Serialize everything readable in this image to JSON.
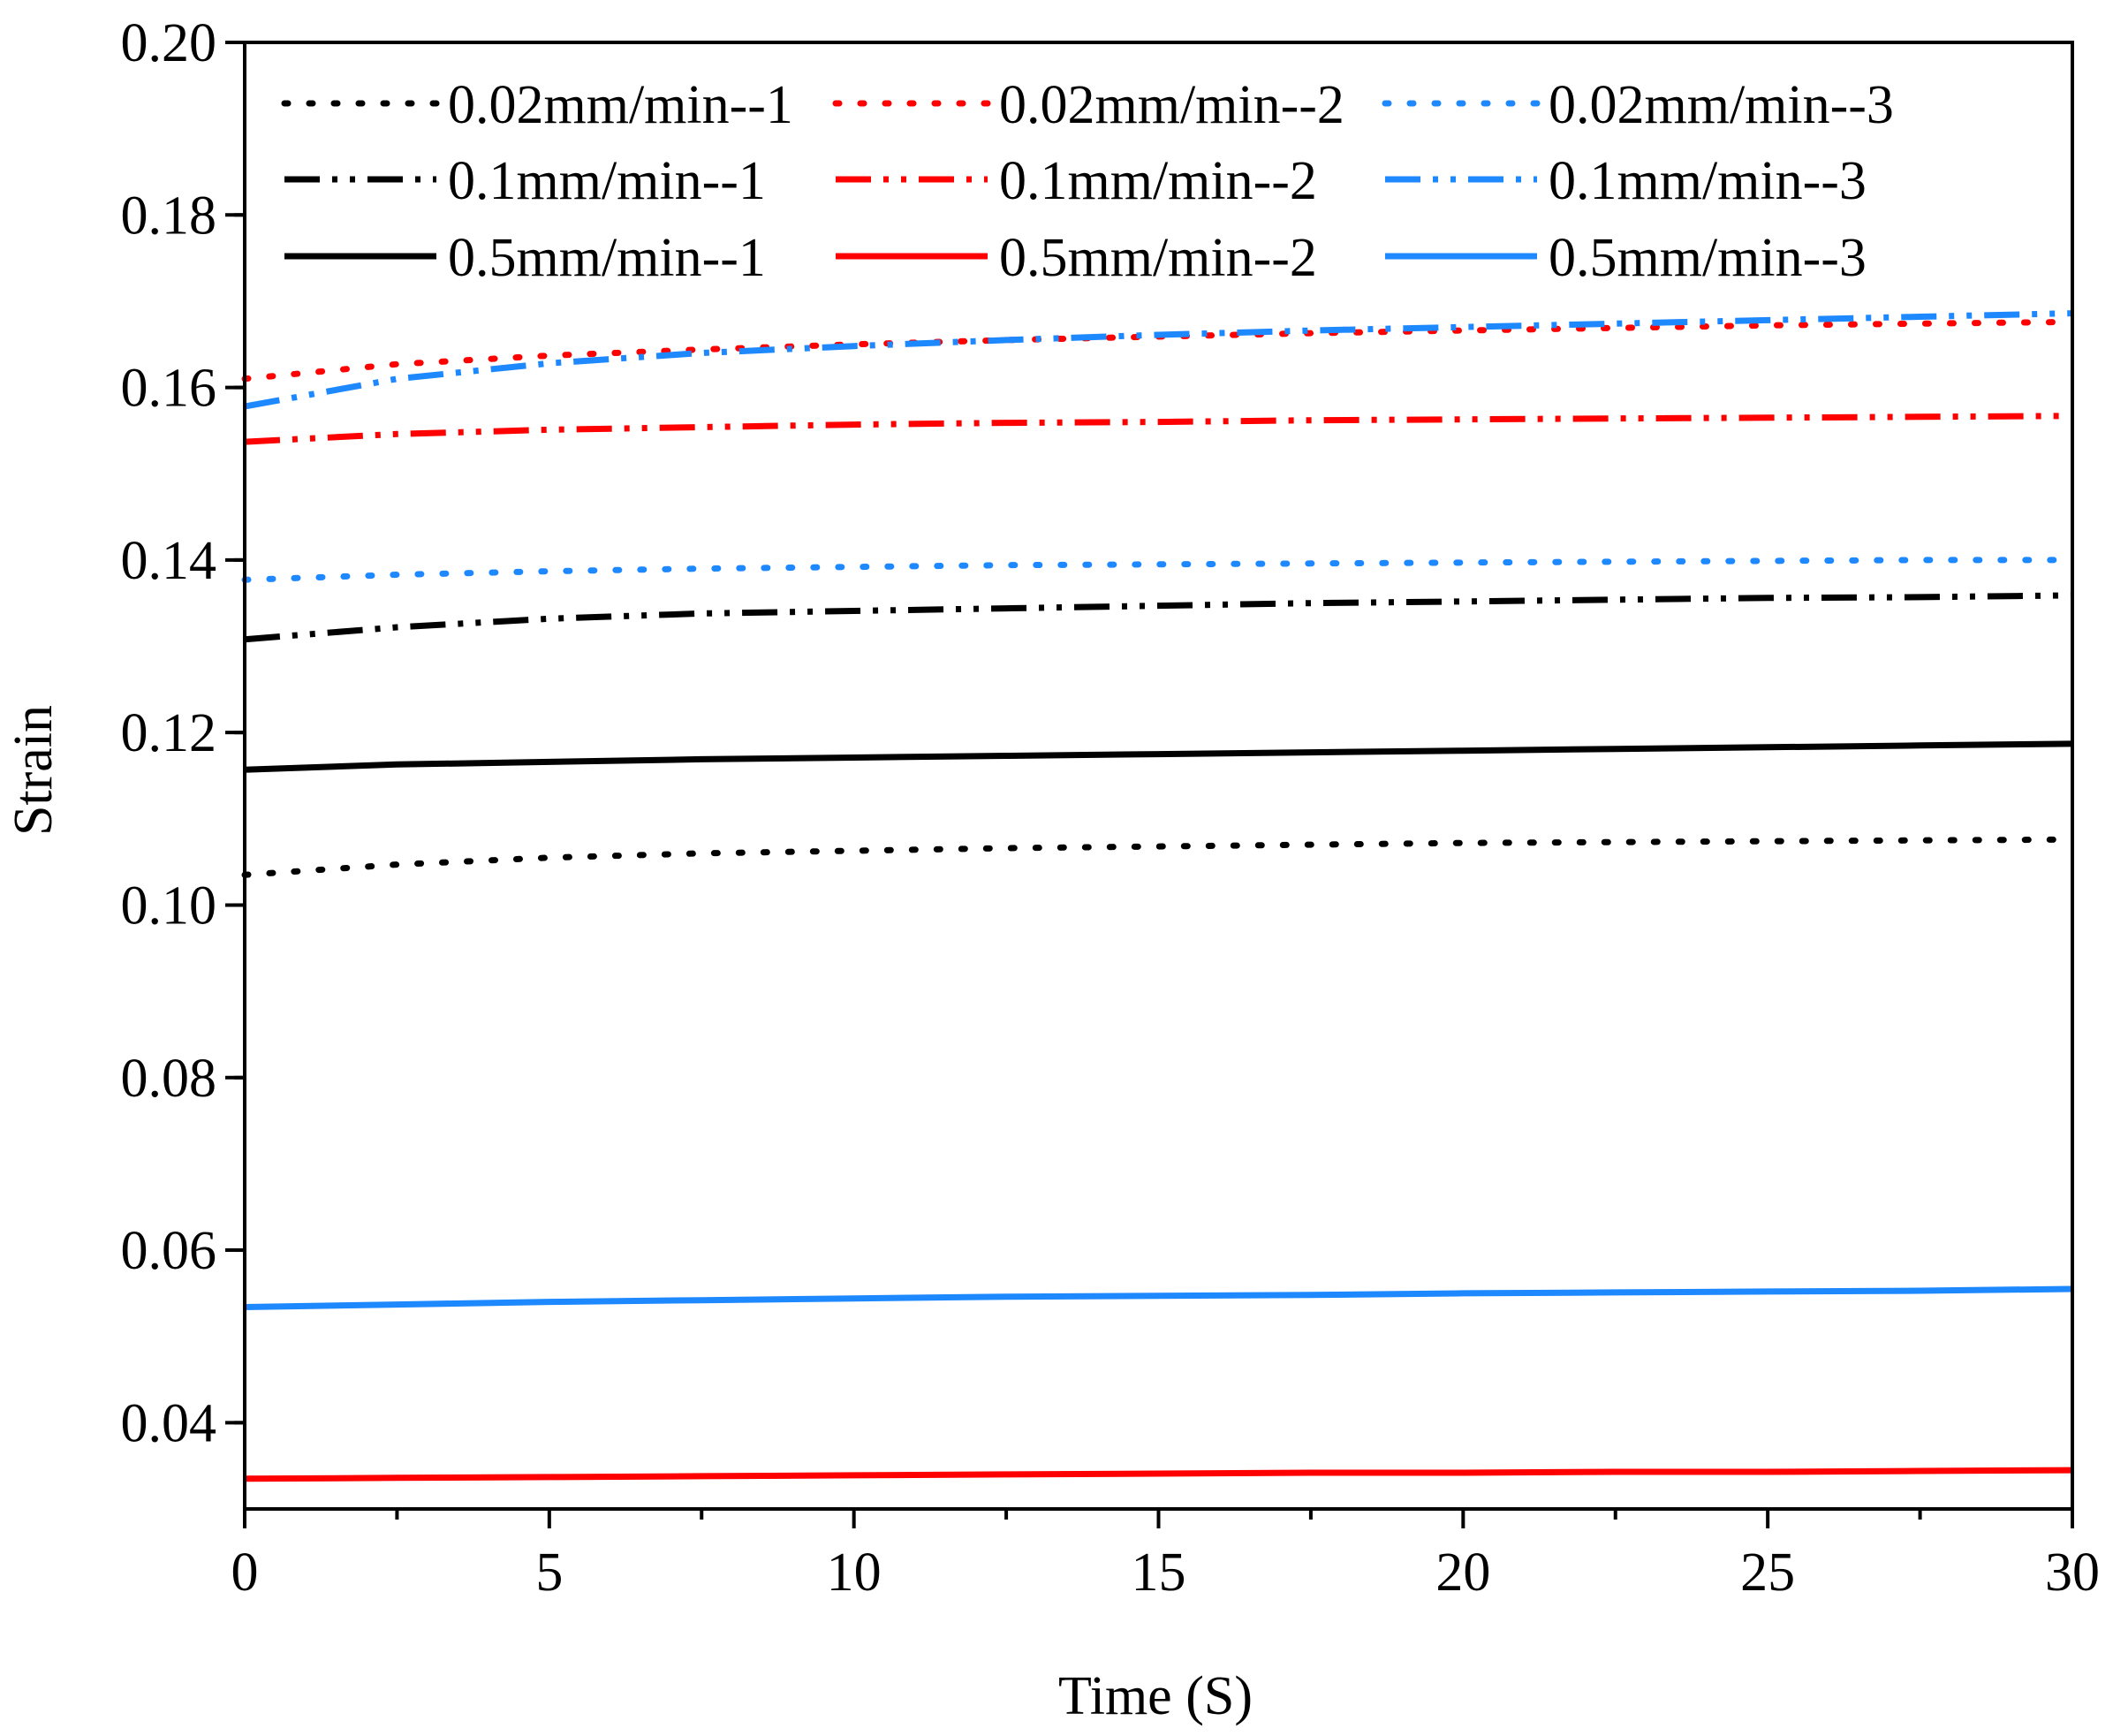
{
  "chart_data": {
    "type": "line",
    "title": "",
    "xlabel": "Time (S)",
    "ylabel": "Strain",
    "xlim": [
      0,
      30
    ],
    "ylim": [
      0.03,
      0.2
    ],
    "xticks": [
      0,
      5,
      10,
      15,
      20,
      25,
      30
    ],
    "xtick_labels": [
      "0",
      "5",
      "10",
      "15",
      "20",
      "25",
      "30"
    ],
    "yticks": [
      0.04,
      0.06,
      0.08,
      0.1,
      0.12,
      0.14,
      0.16,
      0.18,
      0.2
    ],
    "ytick_labels": [
      "0.04",
      "0.06",
      "0.08",
      "0.10",
      "0.12",
      "0.14",
      "0.16",
      "0.18",
      "0.20"
    ],
    "grid": false,
    "legend_position": "top",
    "x": [
      0,
      2.5,
      5,
      7.5,
      10,
      12.5,
      15,
      17.5,
      20,
      22.5,
      25,
      27.5,
      30
    ],
    "series": [
      {
        "name": "0.02mm/min--1",
        "color": "#000000",
        "style": "dot",
        "values": [
          0.1035,
          0.1047,
          0.1055,
          0.106,
          0.1063,
          0.1066,
          0.1068,
          0.107,
          0.1072,
          0.1073,
          0.1074,
          0.1075,
          0.1076
        ]
      },
      {
        "name": "0.02mm/min--2",
        "color": "#ff0000",
        "style": "dot",
        "values": [
          0.161,
          0.1627,
          0.1637,
          0.1644,
          0.165,
          0.1655,
          0.1659,
          0.1663,
          0.1666,
          0.1669,
          0.1672,
          0.1674,
          0.1676
        ]
      },
      {
        "name": "0.02mm/min--3",
        "color": "#1e88ff",
        "style": "dot",
        "values": [
          0.1377,
          0.1383,
          0.1387,
          0.139,
          0.1392,
          0.1394,
          0.1395,
          0.1396,
          0.1397,
          0.1398,
          0.1399,
          0.14,
          0.14
        ]
      },
      {
        "name": "0.1mm/min--1",
        "color": "#000000",
        "style": "dashdotdot",
        "values": [
          0.1308,
          0.1322,
          0.1332,
          0.1338,
          0.1341,
          0.1344,
          0.1347,
          0.135,
          0.1352,
          0.1354,
          0.1356,
          0.1357,
          0.1359
        ]
      },
      {
        "name": "0.1mm/min--2",
        "color": "#ff0000",
        "style": "dashdotdot",
        "values": [
          0.1537,
          0.1546,
          0.1551,
          0.1554,
          0.1557,
          0.1559,
          0.156,
          0.1562,
          0.1563,
          0.1564,
          0.1565,
          0.1566,
          0.1567
        ]
      },
      {
        "name": "0.1mm/min--3",
        "color": "#1e88ff",
        "style": "dashdotdot",
        "values": [
          0.1578,
          0.161,
          0.1628,
          0.164,
          0.1648,
          0.1655,
          0.1661,
          0.1666,
          0.167,
          0.1674,
          0.1678,
          0.1682,
          0.1686
        ]
      },
      {
        "name": "0.5mm/min--1",
        "color": "#000000",
        "style": "solid",
        "values": [
          0.1157,
          0.1163,
          0.1166,
          0.1169,
          0.1171,
          0.1173,
          0.1175,
          0.1177,
          0.1179,
          0.1181,
          0.1183,
          0.1185,
          0.1187
        ]
      },
      {
        "name": "0.5mm/min--2",
        "color": "#ff0000",
        "style": "solid",
        "values": [
          0.0335,
          0.0336,
          0.0337,
          0.0338,
          0.0339,
          0.034,
          0.0341,
          0.0342,
          0.0342,
          0.0343,
          0.0343,
          0.0344,
          0.0345
        ]
      },
      {
        "name": "0.5mm/min--3",
        "color": "#1e88ff",
        "style": "solid",
        "values": [
          0.0534,
          0.0537,
          0.054,
          0.0542,
          0.0544,
          0.0546,
          0.0547,
          0.0548,
          0.055,
          0.0551,
          0.0552,
          0.0553,
          0.0555
        ]
      }
    ]
  }
}
